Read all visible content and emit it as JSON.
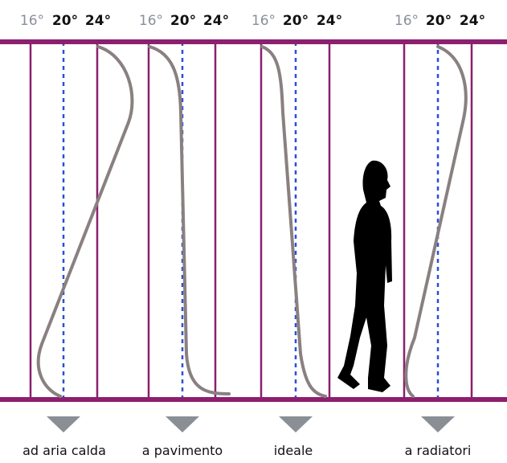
{
  "panels": [
    {
      "ticks": [
        "16°",
        "20°",
        "24°"
      ],
      "label": "ad aria calda"
    },
    {
      "ticks": [
        "16°",
        "20°",
        "24°"
      ],
      "label": "a pavimento"
    },
    {
      "ticks": [
        "16°",
        "20°",
        "24°"
      ],
      "label": "ideale"
    },
    {
      "ticks": [
        "16°",
        "20°",
        "24°"
      ],
      "label": "a radiatori"
    }
  ]
}
